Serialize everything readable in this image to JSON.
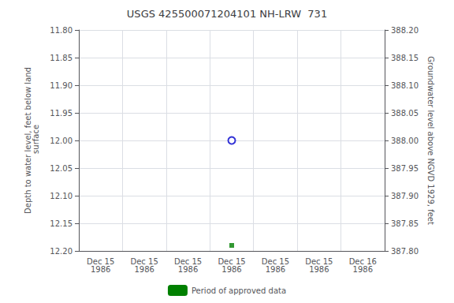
{
  "chart_data": {
    "type": "scatter",
    "title": "USGS 425500071204101 NH-LRW  731",
    "x_label": "",
    "y_label": "Depth to water level, feet below land\n surface",
    "y2_label": "Groundwater level above NGVD 1929, feet",
    "categories": [
      "Dec 15\n1986",
      "Dec 15\n1986",
      "Dec 15\n1986",
      "Dec 15\n1986",
      "Dec 15\n1986",
      "Dec 15\n1986",
      "Dec 16\n1986"
    ],
    "series": [
      {
        "type": "scatter",
        "marker": "open_circle",
        "color": "#0000cc",
        "values": [
          null,
          null,
          null,
          12.0,
          null,
          null,
          null
        ]
      },
      {
        "type": "scatter",
        "marker": "square",
        "color": "#008000",
        "values": [
          null,
          null,
          null,
          12.19,
          null,
          null,
          null
        ]
      },
      {
        "type": "bar",
        "name": "Period of approved data",
        "color": "#008000",
        "values": [
          null,
          null,
          null,
          null,
          null,
          null,
          null
        ]
      }
    ],
    "ylim": [
      12.2,
      11.8
    ],
    "yticks": [
      {
        "value": 11.8,
        "label": "11.80"
      },
      {
        "value": 11.85,
        "label": "11.85"
      },
      {
        "value": 11.9,
        "label": "11.90"
      },
      {
        "value": 11.95,
        "label": "11.95"
      },
      {
        "value": 12.0,
        "label": "12.00"
      },
      {
        "value": 12.05,
        "label": "12.05"
      },
      {
        "value": 12.1,
        "label": "12.10"
      },
      {
        "value": 12.15,
        "label": "12.15"
      },
      {
        "value": 12.2,
        "label": "12.20"
      }
    ],
    "y2lim": [
      387.8,
      388.2
    ],
    "y2ticks": [
      {
        "value": 388.2,
        "label": "388.20"
      },
      {
        "value": 388.15,
        "label": "388.15"
      },
      {
        "value": 388.1,
        "label": "388.10"
      },
      {
        "value": 388.05,
        "label": "388.05"
      },
      {
        "value": 388.0,
        "label": "388.00"
      },
      {
        "value": 387.95,
        "label": "387.95"
      },
      {
        "value": 387.9,
        "label": "387.90"
      },
      {
        "value": 387.85,
        "label": "387.85"
      },
      {
        "value": 387.8,
        "label": "387.80"
      }
    ],
    "grid": true,
    "legend": "bottom"
  }
}
